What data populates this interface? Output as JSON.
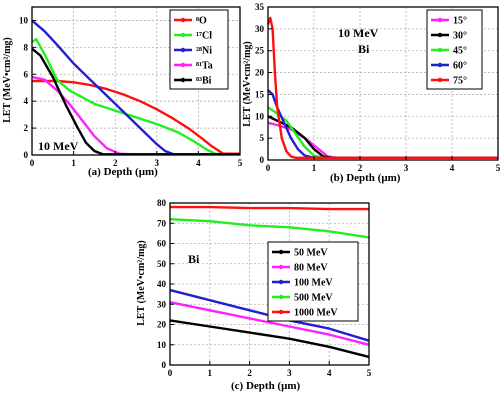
{
  "chart_data": [
    {
      "id": "a",
      "type": "line",
      "panel_label": "(a)",
      "xlabel": "Depth (μm)",
      "ylabel": "LET (MeV•cm²/mg)",
      "xlim": [
        0,
        5
      ],
      "ylim": [
        0,
        11
      ],
      "xticks": [
        0,
        1,
        2,
        3,
        4,
        5
      ],
      "yticks": [
        0,
        2,
        4,
        6,
        8,
        10
      ],
      "grid": true,
      "legend_position": "top-right",
      "annotations": [
        "10 MeV"
      ],
      "series": [
        {
          "name": "⁸O",
          "color": "#ff1010",
          "x": [
            0,
            0.3,
            0.6,
            1.0,
            1.4,
            1.8,
            2.2,
            2.6,
            3.0,
            3.4,
            3.8,
            4.1,
            4.3,
            4.5,
            4.6,
            5.0
          ],
          "y": [
            5.5,
            5.5,
            5.5,
            5.4,
            5.2,
            4.9,
            4.5,
            4.0,
            3.4,
            2.7,
            1.9,
            1.2,
            0.7,
            0.3,
            0.1,
            0.1
          ]
        },
        {
          "name": "¹⁷Cl",
          "color": "#22ee22",
          "x": [
            0,
            0.1,
            0.3,
            0.6,
            0.9,
            1.2,
            1.5,
            2.0,
            2.5,
            3.0,
            3.5,
            3.9,
            4.2,
            4.4,
            4.6,
            5.0
          ],
          "y": [
            8.4,
            8.6,
            7.5,
            5.6,
            4.8,
            4.3,
            3.8,
            3.3,
            2.8,
            2.3,
            1.7,
            1.0,
            0.4,
            0.1,
            0.05,
            0.05
          ]
        },
        {
          "name": "²⁸Ni",
          "color": "#2020d0",
          "x": [
            0,
            0.3,
            0.6,
            1.0,
            1.4,
            1.8,
            2.2,
            2.6,
            3.0,
            3.2,
            3.4,
            5.0
          ],
          "y": [
            10.0,
            9.2,
            8.2,
            6.8,
            5.6,
            4.4,
            3.2,
            2.0,
            0.8,
            0.3,
            0.05,
            0.05
          ]
        },
        {
          "name": "⁸¹Ta",
          "color": "#ff20ff",
          "x": [
            0,
            0.3,
            0.6,
            0.9,
            1.2,
            1.5,
            1.8,
            2.1,
            2.4,
            5.0
          ],
          "y": [
            5.8,
            5.6,
            4.8,
            3.8,
            2.6,
            1.4,
            0.5,
            0.1,
            0.05,
            0.05
          ]
        },
        {
          "name": "⁸³Bi",
          "color": "#000000",
          "x": [
            0,
            0.2,
            0.5,
            0.8,
            1.1,
            1.3,
            1.5,
            1.7,
            1.9,
            5.0
          ],
          "y": [
            7.9,
            7.4,
            5.8,
            3.8,
            2.0,
            0.9,
            0.3,
            0.05,
            0.05,
            0.05
          ]
        }
      ]
    },
    {
      "id": "b",
      "type": "line",
      "panel_label": "(b)",
      "xlabel": "Depth (μm)",
      "ylabel": "LET (MeV•cm²/mg)",
      "xlim": [
        0,
        5
      ],
      "ylim": [
        0,
        35
      ],
      "xticks": [
        0,
        1,
        2,
        3,
        4,
        5
      ],
      "yticks": [
        0,
        5,
        10,
        15,
        20,
        25,
        30,
        35
      ],
      "grid": true,
      "legend_position": "top-right",
      "annotations": [
        "10 MeV",
        "Bi"
      ],
      "series": [
        {
          "name": "15°",
          "color": "#ff20ff",
          "x": [
            0,
            0.2,
            0.5,
            0.8,
            1.1,
            1.3,
            1.5,
            5.0
          ],
          "y": [
            8.5,
            8.0,
            7.0,
            5.0,
            2.5,
            0.8,
            0.5,
            0.5
          ]
        },
        {
          "name": "30°",
          "color": "#000000",
          "x": [
            0,
            0.2,
            0.5,
            0.8,
            1.0,
            1.2,
            1.4,
            5.0
          ],
          "y": [
            10.0,
            9.0,
            7.5,
            5.0,
            2.5,
            0.8,
            0.5,
            0.5
          ]
        },
        {
          "name": "45°",
          "color": "#22ee22",
          "x": [
            0,
            0.15,
            0.4,
            0.6,
            0.8,
            1.0,
            1.2,
            5.0
          ],
          "y": [
            12.0,
            11.0,
            9.0,
            6.0,
            3.0,
            1.0,
            0.5,
            0.5
          ]
        },
        {
          "name": "60°",
          "color": "#2020d0",
          "x": [
            0,
            0.1,
            0.2,
            0.35,
            0.5,
            0.65,
            0.8,
            1.0,
            5.0
          ],
          "y": [
            16.0,
            15.0,
            12.0,
            8.5,
            5.0,
            2.5,
            1.0,
            0.5,
            0.5
          ]
        },
        {
          "name": "75°",
          "color": "#ff1010",
          "x": [
            0,
            0.05,
            0.1,
            0.15,
            0.2,
            0.3,
            0.4,
            0.5,
            0.6,
            5.0
          ],
          "y": [
            31.0,
            32.5,
            30.0,
            20.0,
            12.0,
            5.0,
            2.0,
            0.8,
            0.5,
            0.5
          ]
        }
      ]
    },
    {
      "id": "c",
      "type": "line",
      "panel_label": "(c)",
      "xlabel": "Depth (μm)",
      "ylabel": "LET (MeV•cm²/mg)",
      "xlim": [
        0,
        5
      ],
      "ylim": [
        0,
        80
      ],
      "xticks": [
        0,
        1,
        2,
        3,
        4,
        5
      ],
      "yticks": [
        0,
        10,
        20,
        30,
        40,
        50,
        60,
        70,
        80
      ],
      "grid": true,
      "legend_position": "right",
      "annotations": [
        "Bi"
      ],
      "series": [
        {
          "name": "50 MeV",
          "color": "#000000",
          "x": [
            0,
            1,
            2,
            3,
            4,
            5
          ],
          "y": [
            22,
            19,
            16,
            13,
            9,
            4
          ]
        },
        {
          "name": "80 MeV",
          "color": "#ff20ff",
          "x": [
            0,
            1,
            2,
            3,
            4,
            5
          ],
          "y": [
            31,
            27,
            23,
            19,
            15,
            10
          ]
        },
        {
          "name": "100 MeV",
          "color": "#2020d0",
          "x": [
            0,
            1,
            2,
            3,
            4,
            5
          ],
          "y": [
            37,
            32,
            27,
            22,
            18,
            12
          ]
        },
        {
          "name": "500 MeV",
          "color": "#22ee22",
          "x": [
            0,
            1,
            2,
            3,
            4,
            5
          ],
          "y": [
            72,
            71,
            69,
            68,
            66,
            63
          ]
        },
        {
          "name": "1000 MeV",
          "color": "#ff1010",
          "x": [
            0,
            1,
            2,
            3,
            4,
            5
          ],
          "y": [
            78,
            78,
            77.5,
            77.5,
            77,
            77
          ]
        }
      ]
    }
  ]
}
